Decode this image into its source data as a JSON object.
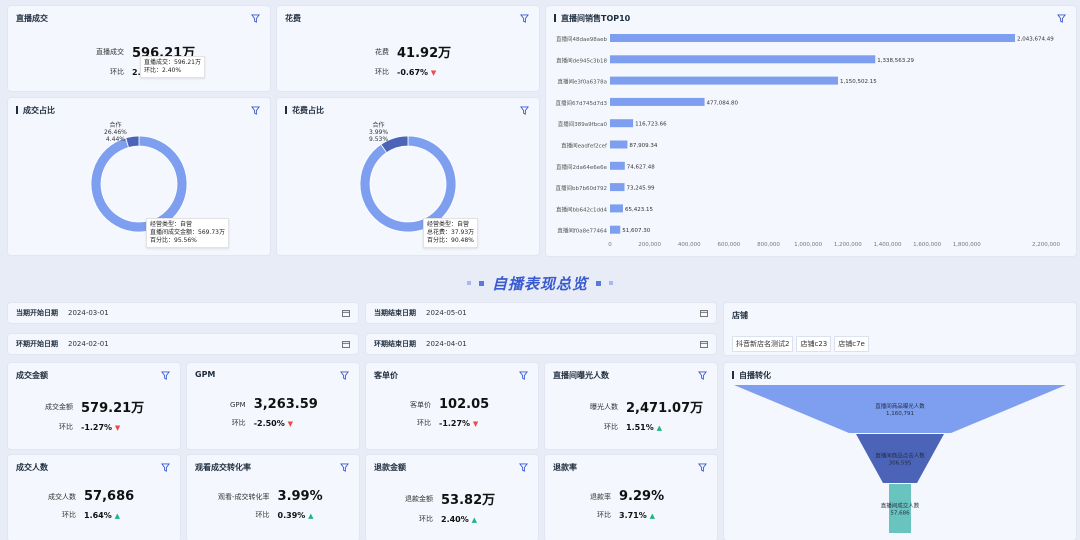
{
  "live_deal": {
    "title": "直播成交",
    "label": "直播成交",
    "value": "596.21万",
    "mom_label": "环比",
    "mom_val": "2.",
    "tip_line1": "直播成交：596.21万",
    "tip_line2": "环比：2.40%"
  },
  "spend": {
    "title": "花费",
    "label": "花费",
    "value": "41.92万",
    "mom_label": "环比",
    "mom_val": "-0.67%"
  },
  "top10": {
    "title": "直播间销售TOP10"
  },
  "deal_ratio": {
    "title": "成交占比",
    "hover_label": "合作",
    "hover_pct": "26.46%",
    "hover_pct2": "4.44%",
    "tip_line1": "经营类型：自营",
    "tip_line2": "直播间成交金额：569.73万",
    "tip_line3": "百分比：95.56%"
  },
  "spend_ratio": {
    "title": "花费占比",
    "hover_label": "合作",
    "hover_pct": "3.99%",
    "hover_pct2": "9.53%",
    "tip_line1": "经营类型：自营",
    "tip_line2": "总花费：37.93万",
    "tip_line3": "百分比：90.48%"
  },
  "section": {
    "title": "自播表现总览"
  },
  "filters": {
    "cur_start_label": "当期开始日期",
    "cur_start": "2024-03-01",
    "cur_end_label": "当期结束日期",
    "cur_end": "2024-05-01",
    "prev_start_label": "环期开始日期",
    "prev_start": "2024-02-01",
    "prev_end_label": "环期结束日期",
    "prev_end": "2024-04-01",
    "shop_label": "店铺",
    "shops": [
      "抖音新店名测试2",
      "店铺c23",
      "店铺c7e"
    ]
  },
  "metrics": [
    {
      "title": "成交金额",
      "label": "成交金额",
      "value": "579.21万",
      "mom_label": "环比",
      "mom": "-1.27%",
      "dir": "down"
    },
    {
      "title": "GPM",
      "label": "GPM",
      "value": "3,263.59",
      "mom_label": "环比",
      "mom": "-2.50%",
      "dir": "down"
    },
    {
      "title": "客单价",
      "label": "客单价",
      "value": "102.05",
      "mom_label": "环比",
      "mom": "-1.27%",
      "dir": "down"
    },
    {
      "title": "直播间曝光人数",
      "label": "曝光人数",
      "value": "2,471.07万",
      "mom_label": "环比",
      "mom": "1.51%",
      "dir": "up"
    },
    {
      "title": "成交人数",
      "label": "成交人数",
      "value": "57,686",
      "mom_label": "环比",
      "mom": "1.64%",
      "dir": "up"
    },
    {
      "title": "观看成交转化率",
      "label": "观看-成交转化率",
      "value": "3.99%",
      "mom_label": "环比",
      "mom": "0.39%",
      "dir": "up"
    },
    {
      "title": "退款金额",
      "label": "退款金额",
      "value": "53.82万",
      "mom_label": "环比",
      "mom": "2.40%",
      "dir": "up"
    },
    {
      "title": "退款率",
      "label": "退款率",
      "value": "9.29%",
      "mom_label": "环比",
      "mom": "3.71%",
      "dir": "up"
    }
  ],
  "funnel": {
    "title": "自播转化",
    "stages": [
      {
        "name": "直播间商品曝光人数",
        "value": "1,160,791",
        "color": "#7e9ef0"
      },
      {
        "name": "直播间商品点击人数",
        "value": "306,595",
        "color": "#4c64b8"
      },
      {
        "name": "直播间成交人数",
        "value": "57,686",
        "color": "#69c4c0"
      }
    ]
  },
  "chart_data": [
    {
      "type": "bar",
      "orientation": "horizontal",
      "title": "直播间销售TOP10",
      "categories": [
        "直播间48dae98aeb",
        "直播间de945c3b18",
        "直播间e3f0a6378a",
        "直播间67d745d7d3",
        "直播间389a9fbca0",
        "直播间eadfef2cef",
        "直播间2da64e6e6e",
        "直播间bb7b60d792",
        "直播间bb642c1dd4",
        "直播间f0a8e77464"
      ],
      "values": [
        2043674.49,
        1338563.29,
        1150502.15,
        477084.8,
        116723.66,
        87909.34,
        74627.48,
        73245.99,
        65423.15,
        51607.3
      ],
      "value_labels": [
        "2,043,674.49",
        "1,338,563.29",
        "1,150,502.15",
        "477,084.80",
        "116,723.66",
        "87,909.34",
        "74,627.48",
        "73,245.99",
        "65,423.15",
        "51,607.30"
      ],
      "xticks": [
        "0",
        "200,000",
        "400,000",
        "600,000",
        "800,000",
        "1,000,000",
        "1,200,000",
        "1,400,000",
        "1,600,000",
        "1,800,000",
        "2,200,000"
      ],
      "xlim": [
        0,
        2200000
      ],
      "color": "#7e9ef0"
    },
    {
      "type": "pie",
      "donut": true,
      "title": "成交占比",
      "slices": [
        {
          "name": "自营",
          "value": 95.56,
          "color": "#7e9ef0"
        },
        {
          "name": "合作",
          "value": 4.44,
          "color": "#4c64b8"
        }
      ]
    },
    {
      "type": "pie",
      "donut": true,
      "title": "花费占比",
      "slices": [
        {
          "name": "自营",
          "value": 90.48,
          "color": "#7e9ef0"
        },
        {
          "name": "合作",
          "value": 9.52,
          "color": "#4c64b8"
        }
      ]
    }
  ]
}
